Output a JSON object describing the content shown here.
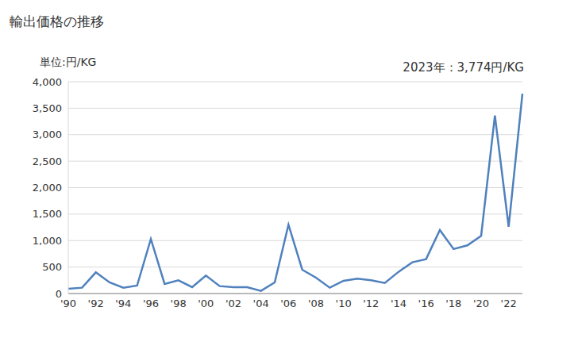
{
  "chart_data": {
    "type": "line",
    "title": "輸出価格の推移",
    "subtitle": "単位:円/KG",
    "annotation": "2023年：3,774円/KG",
    "categories": [
      "'90",
      null,
      "'92",
      null,
      "'94",
      null,
      "'96",
      null,
      "'98",
      null,
      "'00",
      null,
      "'02",
      null,
      "'04",
      null,
      "'06",
      null,
      "'08",
      null,
      "'10",
      null,
      "'12",
      null,
      "'14",
      null,
      "'16",
      null,
      "'18",
      null,
      "'20",
      null,
      "'22",
      null
    ],
    "values": [
      90,
      110,
      400,
      210,
      110,
      150,
      1030,
      180,
      250,
      120,
      340,
      140,
      120,
      120,
      50,
      210,
      1300,
      450,
      300,
      110,
      240,
      280,
      250,
      200,
      410,
      590,
      650,
      1200,
      840,
      910,
      1090,
      3360,
      1260,
      3774
    ],
    "color": "#4f81bd",
    "ylim": [
      0,
      4000
    ],
    "yticks": [
      0,
      500,
      {
        "value": 1000,
        "label": "1,000"
      },
      {
        "value": 1500,
        "label": "1,500"
      },
      {
        "value": 2000,
        "label": "2,000"
      },
      {
        "value": 2500,
        "label": "2,500"
      },
      {
        "value": 3000,
        "label": "3,000"
      },
      {
        "value": 3500,
        "label": "3,500"
      },
      {
        "value": 4000,
        "label": "4,000"
      }
    ],
    "grid": true
  }
}
